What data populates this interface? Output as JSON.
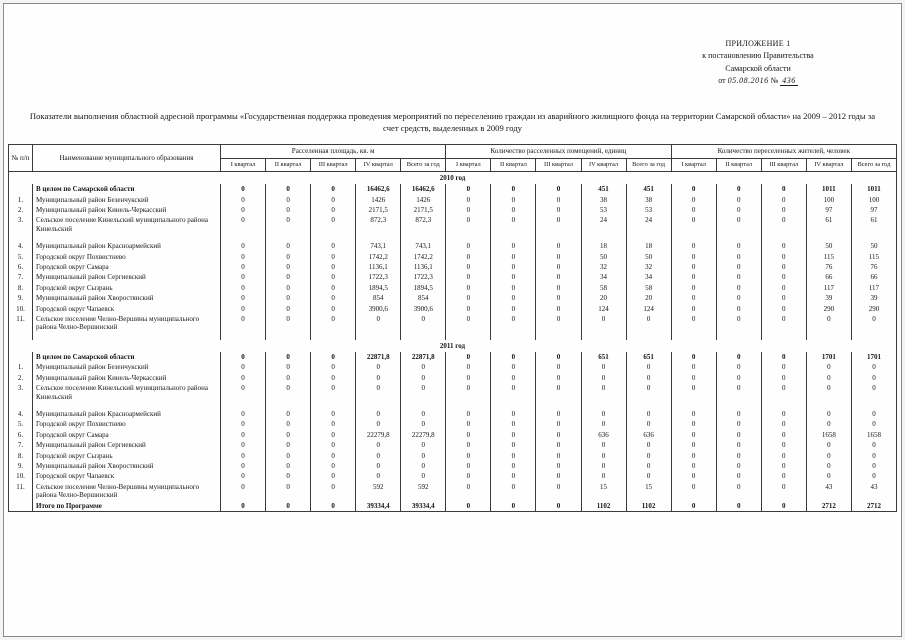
{
  "header": {
    "appendix": "ПРИЛОЖЕНИЕ 1",
    "decree_line1": "к постановлению Правительства",
    "decree_line2": "Самарской области",
    "date_prefix": "от",
    "date_hand": "05.08.2016",
    "num_prefix": "№",
    "num_hand": "436"
  },
  "title": "Показатели выполнения областной адресной программы «Государственная поддержка проведения мероприятий по переселению граждан из аварийного жилищного фонда  на территории Самарской области» на 2009 –  2012 годы за счет средств, выделенных в 2009 году",
  "table": {
    "head": {
      "num": "№ п/п",
      "name": "Наименование муниципального образования",
      "groups": [
        "Расселенная площадь, кв. м",
        "Количество расселенных помещений, единиц",
        "Количество переселенных жителей, человек"
      ],
      "quarters": [
        "I квартал",
        "II квартал",
        "III квартал",
        "IV квартал",
        "Всего за год"
      ]
    },
    "rows": [
      {
        "t": "s",
        "label": "2010 год"
      },
      {
        "t": "d",
        "b": true,
        "num": "",
        "name": "В целом по Самарской области",
        "v": [
          "0",
          "0",
          "0",
          "16462,6",
          "16462,6",
          "0",
          "0",
          "0",
          "451",
          "451",
          "0",
          "0",
          "0",
          "1011",
          "1011"
        ]
      },
      {
        "t": "d",
        "num": "1.",
        "name": "Муниципальный район Безенчукский",
        "v": [
          "0",
          "0",
          "0",
          "1426",
          "1426",
          "0",
          "0",
          "0",
          "38",
          "38",
          "0",
          "0",
          "0",
          "100",
          "100"
        ]
      },
      {
        "t": "d",
        "num": "2.",
        "name": "Муниципальный район Кинель-Черкасский",
        "v": [
          "0",
          "0",
          "0",
          "2171,5",
          "2171,5",
          "0",
          "0",
          "0",
          "53",
          "53",
          "0",
          "0",
          "0",
          "97",
          "97"
        ]
      },
      {
        "t": "d",
        "num": "3.",
        "name": "Сельское поселение Кинельский муниципального района Кинельский",
        "v": [
          "0",
          "0",
          "0",
          "872,3",
          "872,3",
          "0",
          "0",
          "0",
          "24",
          "24",
          "0",
          "0",
          "0",
          "61",
          "61"
        ]
      },
      {
        "t": "g"
      },
      {
        "t": "d",
        "num": "4.",
        "name": "Муниципальный район Красноармейский",
        "v": [
          "0",
          "0",
          "0",
          "743,1",
          "743,1",
          "0",
          "0",
          "0",
          "18",
          "18",
          "0",
          "0",
          "0",
          "50",
          "50"
        ]
      },
      {
        "t": "d",
        "num": "5.",
        "name": "Городской округ Похвистнево",
        "v": [
          "0",
          "0",
          "0",
          "1742,2",
          "1742,2",
          "0",
          "0",
          "0",
          "50",
          "50",
          "0",
          "0",
          "0",
          "115",
          "115"
        ]
      },
      {
        "t": "d",
        "num": "6.",
        "name": "Городской округ Самара",
        "v": [
          "0",
          "0",
          "0",
          "1136,1",
          "1136,1",
          "0",
          "0",
          "0",
          "32",
          "32",
          "0",
          "0",
          "0",
          "76",
          "76"
        ]
      },
      {
        "t": "d",
        "num": "7.",
        "name": "Муниципальный район Сергиевский",
        "v": [
          "0",
          "0",
          "0",
          "1722,3",
          "1722,3",
          "0",
          "0",
          "0",
          "34",
          "34",
          "0",
          "0",
          "0",
          "66",
          "66"
        ]
      },
      {
        "t": "d",
        "num": "8.",
        "name": "Городской округ Сызрань",
        "v": [
          "0",
          "0",
          "0",
          "1894,5",
          "1894,5",
          "0",
          "0",
          "0",
          "58",
          "58",
          "0",
          "0",
          "0",
          "117",
          "117"
        ]
      },
      {
        "t": "d",
        "num": "9.",
        "name": "Муниципальный район Хворостянский",
        "v": [
          "0",
          "0",
          "0",
          "854",
          "854",
          "0",
          "0",
          "0",
          "20",
          "20",
          "0",
          "0",
          "0",
          "39",
          "39"
        ]
      },
      {
        "t": "d",
        "num": "10.",
        "name": "Городской округ Чапаевск",
        "v": [
          "0",
          "0",
          "0",
          "3900,6",
          "3900,6",
          "0",
          "0",
          "0",
          "124",
          "124",
          "0",
          "0",
          "0",
          "290",
          "290"
        ]
      },
      {
        "t": "d",
        "num": "11.",
        "name": "Сельское поселение Челно-Вершины муниципального района Челно-Вершинский",
        "v": [
          "0",
          "0",
          "0",
          "0",
          "0",
          "0",
          "0",
          "0",
          "0",
          "0",
          "0",
          "0",
          "0",
          "0",
          "0"
        ]
      },
      {
        "t": "g"
      },
      {
        "t": "s",
        "label": "2011 год"
      },
      {
        "t": "d",
        "b": true,
        "num": "",
        "name": "В целом по Самарской области",
        "v": [
          "0",
          "0",
          "0",
          "22871,8",
          "22871,8",
          "0",
          "0",
          "0",
          "651",
          "651",
          "0",
          "0",
          "0",
          "1701",
          "1701"
        ]
      },
      {
        "t": "d",
        "num": "1.",
        "name": "Муниципальный район Безенчукский",
        "v": [
          "0",
          "0",
          "0",
          "0",
          "0",
          "0",
          "0",
          "0",
          "0",
          "0",
          "0",
          "0",
          "0",
          "0",
          "0"
        ]
      },
      {
        "t": "d",
        "num": "2.",
        "name": "Муниципальный район Кинель-Черкасский",
        "v": [
          "0",
          "0",
          "0",
          "0",
          "0",
          "0",
          "0",
          "0",
          "0",
          "0",
          "0",
          "0",
          "0",
          "0",
          "0"
        ]
      },
      {
        "t": "d",
        "num": "3.",
        "name": "Сельское поселение Кинельский муниципального района Кинельский",
        "v": [
          "0",
          "0",
          "0",
          "0",
          "0",
          "0",
          "0",
          "0",
          "0",
          "0",
          "0",
          "0",
          "0",
          "0",
          "0"
        ]
      },
      {
        "t": "g"
      },
      {
        "t": "d",
        "num": "4.",
        "name": "Муниципальный район Красноармейский",
        "v": [
          "0",
          "0",
          "0",
          "0",
          "0",
          "0",
          "0",
          "0",
          "0",
          "0",
          "0",
          "0",
          "0",
          "0",
          "0"
        ]
      },
      {
        "t": "d",
        "num": "5.",
        "name": "Городской округ Похвистнево",
        "v": [
          "0",
          "0",
          "0",
          "0",
          "0",
          "0",
          "0",
          "0",
          "0",
          "0",
          "0",
          "0",
          "0",
          "0",
          "0"
        ]
      },
      {
        "t": "d",
        "num": "6.",
        "name": "Городской округ Самара",
        "v": [
          "0",
          "0",
          "0",
          "22279,8",
          "22279,8",
          "0",
          "0",
          "0",
          "636",
          "636",
          "0",
          "0",
          "0",
          "1658",
          "1658"
        ]
      },
      {
        "t": "d",
        "num": "7.",
        "name": "Муниципальный район Сергиевский",
        "v": [
          "0",
          "0",
          "0",
          "0",
          "0",
          "0",
          "0",
          "0",
          "0",
          "0",
          "0",
          "0",
          "0",
          "0",
          "0"
        ]
      },
      {
        "t": "d",
        "num": "8.",
        "name": "Городской округ Сызрань",
        "v": [
          "0",
          "0",
          "0",
          "0",
          "0",
          "0",
          "0",
          "0",
          "0",
          "0",
          "0",
          "0",
          "0",
          "0",
          "0"
        ]
      },
      {
        "t": "d",
        "num": "9.",
        "name": "Муниципальный район Хворостянский",
        "v": [
          "0",
          "0",
          "0",
          "0",
          "0",
          "0",
          "0",
          "0",
          "0",
          "0",
          "0",
          "0",
          "0",
          "0",
          "0"
        ]
      },
      {
        "t": "d",
        "num": "10.",
        "name": "Городской округ Чапаевск",
        "v": [
          "0",
          "0",
          "0",
          "0",
          "0",
          "0",
          "0",
          "0",
          "0",
          "0",
          "0",
          "0",
          "0",
          "0",
          "0"
        ]
      },
      {
        "t": "d",
        "num": "11.",
        "name": "Сельское поселение Челно-Вершины муниципального района Челно-Вершинский",
        "v": [
          "0",
          "0",
          "0",
          "592",
          "592",
          "0",
          "0",
          "0",
          "15",
          "15",
          "0",
          "0",
          "0",
          "43",
          "43"
        ]
      },
      {
        "t": "d",
        "b": true,
        "num": "",
        "name": "Итого по Программе",
        "v": [
          "0",
          "0",
          "0",
          "39334,4",
          "39334,4",
          "0",
          "0",
          "0",
          "1102",
          "1102",
          "0",
          "0",
          "0",
          "2712",
          "2712"
        ]
      }
    ]
  }
}
